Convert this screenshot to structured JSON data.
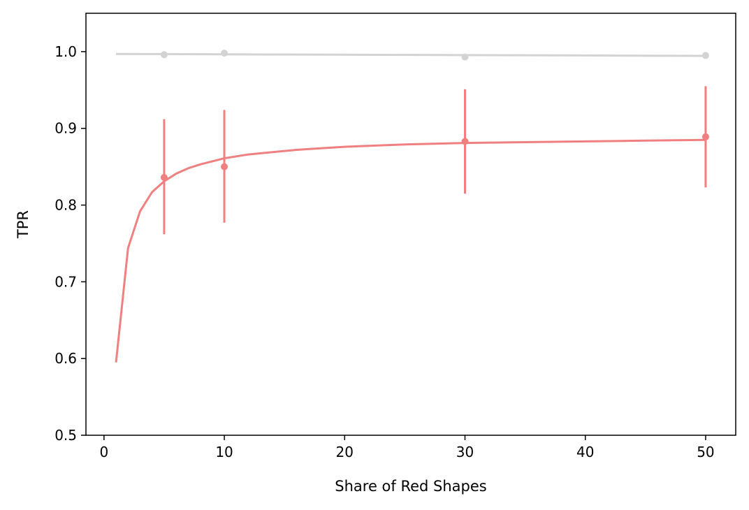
{
  "chart_data": {
    "type": "line",
    "title": "",
    "xlabel": "Share of Red Shapes",
    "ylabel": "TPR",
    "xlim": [
      -1.5,
      52.5
    ],
    "ylim": [
      0.5,
      1.05
    ],
    "xticks": [
      0,
      10,
      20,
      30,
      40,
      50
    ],
    "yticks": [
      0.5,
      0.6,
      0.7,
      0.8,
      0.9,
      1.0
    ],
    "xtick_labels": [
      "0",
      "10",
      "20",
      "30",
      "40",
      "50"
    ],
    "ytick_labels": [
      "0.5",
      "0.6",
      "0.7",
      "0.8",
      "0.9",
      "1.0"
    ],
    "grid": false,
    "legend": "none",
    "series": [
      {
        "color": "#d3d3d3",
        "fit_curve": {
          "x": [
            1,
            5,
            10,
            20,
            30,
            40,
            50
          ],
          "y": [
            0.997,
            0.9968,
            0.9965,
            0.996,
            0.9955,
            0.995,
            0.9945
          ]
        },
        "points": {
          "x": [
            5,
            10,
            30,
            50
          ],
          "y": [
            0.996,
            0.998,
            0.993,
            0.995
          ]
        },
        "error_bars": null
      },
      {
        "color": "#f08080",
        "fit_curve": {
          "x": [
            1,
            2,
            3,
            4,
            5,
            6,
            7,
            8,
            9,
            10,
            12,
            14,
            16,
            18,
            20,
            25,
            30,
            35,
            40,
            45,
            50
          ],
          "y": [
            0.595,
            0.744,
            0.792,
            0.817,
            0.831,
            0.841,
            0.848,
            0.853,
            0.857,
            0.861,
            0.866,
            0.869,
            0.872,
            0.874,
            0.876,
            0.879,
            0.881,
            0.882,
            0.883,
            0.884,
            0.885
          ]
        },
        "points": {
          "x": [
            5,
            10,
            30,
            50
          ],
          "y": [
            0.836,
            0.85,
            0.883,
            0.889
          ]
        },
        "error_bars": {
          "lower": [
            0.762,
            0.777,
            0.815,
            0.823
          ],
          "upper": [
            0.912,
            0.924,
            0.951,
            0.955
          ]
        }
      }
    ]
  }
}
